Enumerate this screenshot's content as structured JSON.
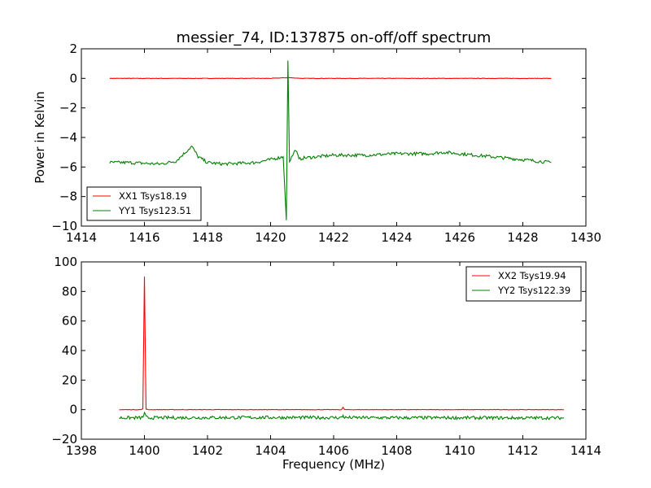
{
  "chart_data": [
    {
      "type": "line",
      "title": "messier_74, ID:137875 on-off/off spectrum",
      "xlabel": "",
      "ylabel": "Power in Kelvin",
      "xlim": [
        1414,
        1430
      ],
      "ylim": [
        -10,
        2
      ],
      "xticks": [
        "1414",
        "1416",
        "1418",
        "1420",
        "1422",
        "1424",
        "1426",
        "1428",
        "1430"
      ],
      "yticks": [
        "2",
        "0",
        "−2",
        "−4",
        "−6",
        "−8",
        "−10"
      ],
      "grid": false,
      "legend": "bottom-left",
      "series": [
        {
          "name": "XX1 Tsys18.19",
          "color": "#ff0000",
          "x": [
            1414.9,
            1416,
            1417,
            1418,
            1419,
            1420,
            1420.55,
            1421,
            1422,
            1423,
            1424,
            1425,
            1426,
            1427,
            1428,
            1428.9
          ],
          "y": [
            0.0,
            0.0,
            0.0,
            0.0,
            0.0,
            0.0,
            0.05,
            0.0,
            0.0,
            0.0,
            0.0,
            0.0,
            0.0,
            0.0,
            0.0,
            0.0
          ]
        },
        {
          "name": "YY1 Tsys123.51",
          "color": "#008000",
          "x": [
            1414.9,
            1415.5,
            1416,
            1416.5,
            1417,
            1417.3,
            1417.5,
            1417.7,
            1418,
            1418.5,
            1419,
            1419.5,
            1420,
            1420.4,
            1420.5,
            1420.55,
            1420.6,
            1420.7,
            1420.8,
            1420.9,
            1421,
            1421.5,
            1422,
            1423,
            1424,
            1425,
            1425.5,
            1426,
            1427,
            1428,
            1428.9
          ],
          "y": [
            -5.7,
            -5.7,
            -5.75,
            -5.8,
            -5.6,
            -5.0,
            -4.6,
            -5.3,
            -5.7,
            -5.8,
            -5.75,
            -5.7,
            -5.5,
            -5.3,
            -9.6,
            1.2,
            -5.6,
            -5.2,
            -4.8,
            -5.5,
            -5.4,
            -5.3,
            -5.2,
            -5.2,
            -5.1,
            -5.1,
            -5.0,
            -5.1,
            -5.3,
            -5.5,
            -5.7
          ]
        }
      ]
    },
    {
      "type": "line",
      "title": "",
      "xlabel": "Frequency (MHz)",
      "ylabel": "",
      "xlim": [
        1398,
        1414
      ],
      "ylim": [
        -20,
        100
      ],
      "xticks": [
        "1398",
        "1400",
        "1402",
        "1404",
        "1406",
        "1408",
        "1410",
        "1412",
        "1414"
      ],
      "yticks": [
        "100",
        "80",
        "60",
        "40",
        "20",
        "0",
        "−20"
      ],
      "grid": false,
      "legend": "top-right",
      "series": [
        {
          "name": "XX2 Tsys19.94",
          "color": "#ff0000",
          "x": [
            1399.2,
            1399.9,
            1399.95,
            1400.0,
            1400.05,
            1400.1,
            1402,
            1404,
            1406,
            1406.25,
            1406.3,
            1406.35,
            1408,
            1410,
            1412,
            1413.3
          ],
          "y": [
            0.0,
            0.0,
            0.5,
            90.0,
            0.5,
            0.0,
            0.0,
            0.0,
            0.0,
            0.0,
            1.5,
            0.0,
            0.0,
            0.0,
            0.0,
            0.0
          ]
        },
        {
          "name": "YY2 Tsys122.39",
          "color": "#008000",
          "x": [
            1399.2,
            1399.9,
            1399.95,
            1400.0,
            1400.05,
            1400.1,
            1402,
            1404,
            1406,
            1406.25,
            1406.3,
            1406.35,
            1408,
            1410,
            1412,
            1413.3
          ],
          "y": [
            -5.5,
            -5.5,
            -5.0,
            -2.5,
            -5.0,
            -5.5,
            -5.4,
            -5.3,
            -5.4,
            -5.4,
            -4.0,
            -5.4,
            -5.5,
            -5.5,
            -5.6,
            -5.6
          ]
        }
      ]
    }
  ]
}
